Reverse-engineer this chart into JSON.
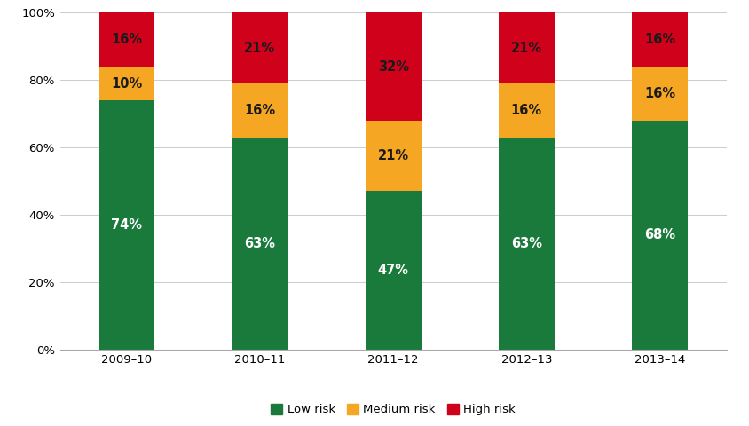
{
  "categories": [
    "2009–10",
    "2010–11",
    "2011–12",
    "2012–13",
    "2013–14"
  ],
  "low_risk": [
    74,
    63,
    47,
    63,
    68
  ],
  "medium_risk": [
    10,
    16,
    21,
    16,
    16
  ],
  "high_risk": [
    16,
    21,
    32,
    21,
    16
  ],
  "low_color": "#1a7a3c",
  "medium_color": "#f5a623",
  "high_color": "#d0021b",
  "low_label": "Low risk",
  "medium_label": "Medium risk",
  "high_label": "High risk",
  "low_text_color": "#ffffff",
  "medium_text_color": "#1a1a1a",
  "high_text_color": "#1a1a1a",
  "ytick_labels": [
    "0%",
    "20%",
    "40%",
    "60%",
    "80%",
    "100%"
  ],
  "ytick_values": [
    0,
    20,
    40,
    60,
    80,
    100
  ],
  "bar_width": 0.42,
  "label_fontsize": 10.5,
  "tick_fontsize": 9.5,
  "legend_fontsize": 9.5,
  "figsize": [
    8.44,
    4.8
  ],
  "dpi": 100
}
